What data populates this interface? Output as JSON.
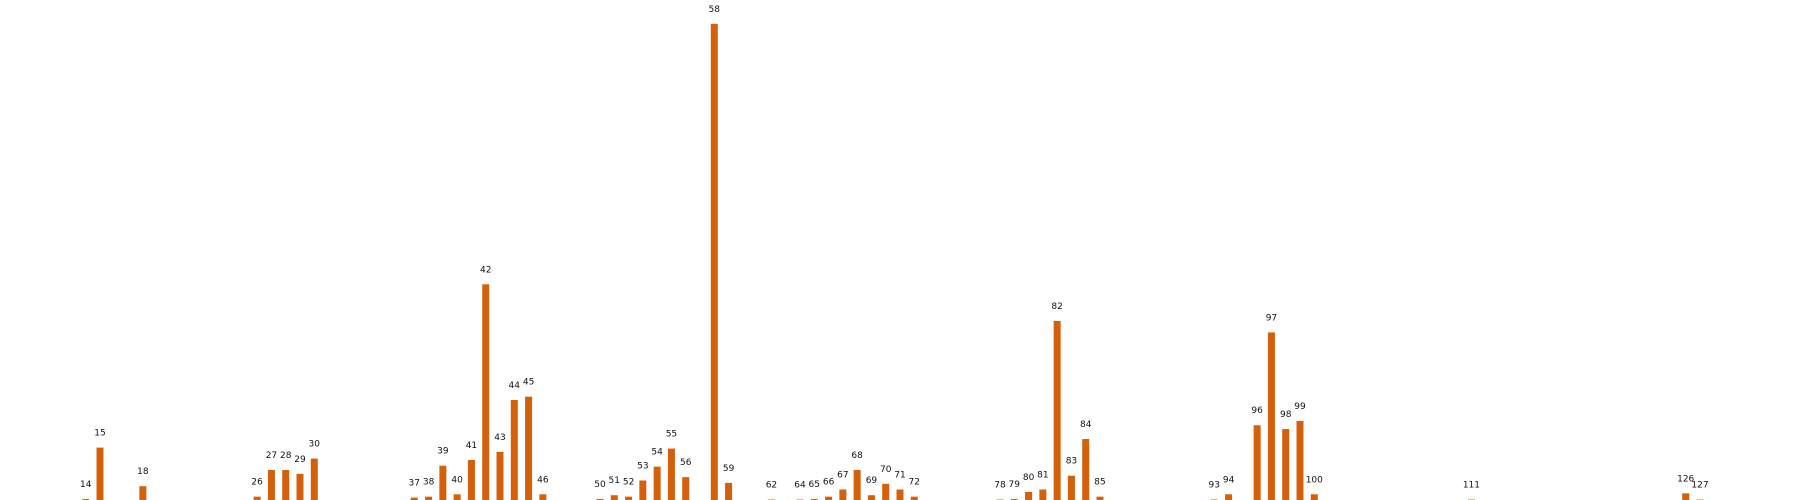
{
  "chart_data": {
    "type": "bar",
    "x": [
      14,
      15,
      18,
      26,
      27,
      28,
      29,
      30,
      37,
      38,
      39,
      40,
      41,
      42,
      43,
      44,
      45,
      46,
      50,
      51,
      52,
      53,
      54,
      55,
      56,
      58,
      59,
      62,
      64,
      65,
      66,
      67,
      68,
      69,
      70,
      71,
      72,
      78,
      79,
      80,
      81,
      82,
      83,
      84,
      85,
      93,
      94,
      96,
      97,
      98,
      99,
      100,
      111,
      126,
      127
    ],
    "values": [
      0.2,
      11,
      2.9,
      0.7,
      6.3,
      6.3,
      5.5,
      8.7,
      0.5,
      0.7,
      7.2,
      1.2,
      8.4,
      45.3,
      10.1,
      21,
      21.7,
      1.2,
      0.2,
      1,
      0.7,
      4.1,
      7,
      10.8,
      4.8,
      100,
      3.6,
      0.1,
      0.1,
      0.2,
      0.7,
      2.2,
      6.3,
      1,
      3.4,
      2.2,
      0.7,
      0.1,
      0.2,
      1.7,
      2.2,
      37.6,
      5.1,
      12.8,
      0.7,
      0.1,
      1.2,
      15.7,
      35.2,
      14.9,
      16.6,
      1.2,
      0.1,
      1.4,
      0.1
    ],
    "color": "#d4600c",
    "xlim": [
      8,
      134
    ],
    "ylim": [
      0,
      105
    ]
  }
}
